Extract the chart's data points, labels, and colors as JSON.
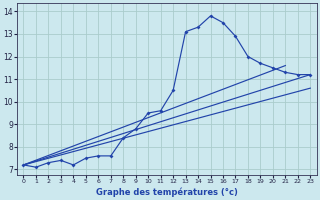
{
  "title": "Graphe des températures (°c)",
  "bg_color": "#cce8ee",
  "grid_color": "#aacccc",
  "line_color": "#2244aa",
  "xlim": [
    -0.5,
    23.5
  ],
  "ylim": [
    6.75,
    14.35
  ],
  "xticks": [
    0,
    1,
    2,
    3,
    4,
    5,
    6,
    7,
    8,
    9,
    10,
    11,
    12,
    13,
    14,
    15,
    16,
    17,
    18,
    19,
    20,
    21,
    22,
    23
  ],
  "yticks": [
    7,
    8,
    9,
    10,
    11,
    12,
    13,
    14
  ],
  "main_x": [
    0,
    1,
    2,
    3,
    4,
    5,
    6,
    7,
    8,
    9,
    10,
    11,
    12,
    13,
    14,
    15,
    16,
    17,
    18,
    19,
    20,
    21,
    22,
    23
  ],
  "main_y": [
    7.2,
    7.1,
    7.3,
    7.4,
    7.2,
    7.5,
    7.6,
    7.6,
    8.4,
    8.8,
    9.5,
    9.6,
    10.5,
    13.1,
    13.3,
    13.8,
    13.5,
    12.9,
    12.0,
    11.7,
    11.5,
    11.3,
    11.2,
    11.2
  ],
  "straight_lines": [
    {
      "x": [
        0,
        23
      ],
      "y": [
        7.2,
        11.2
      ]
    },
    {
      "x": [
        0,
        21
      ],
      "y": [
        7.2,
        11.6
      ]
    },
    {
      "x": [
        0,
        23
      ],
      "y": [
        7.2,
        10.6
      ]
    }
  ]
}
